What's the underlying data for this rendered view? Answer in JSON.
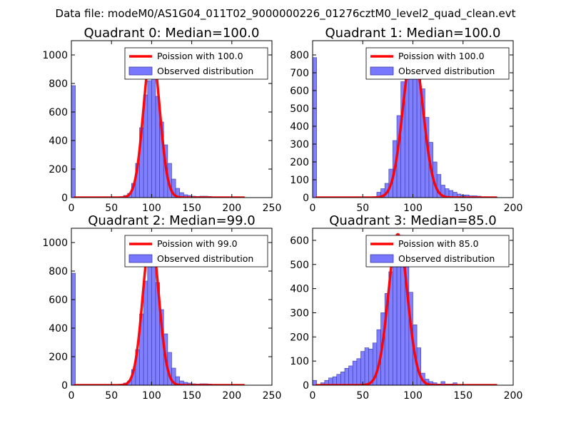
{
  "figure": {
    "suptitle": "Data file: modeM0/AS1G04_011T02_9000000226_01276cztM0_level2_quad_clean.evt"
  },
  "colors": {
    "histogram_fill": "#7878ff",
    "histogram_edge": "#3a3aa8",
    "poisson_line": "#ff0000",
    "frame": "#000000"
  },
  "chart_data": [
    {
      "type": "bar",
      "title": "Quadrant 0: Median=100.0",
      "xlim": [
        0,
        250
      ],
      "ylim": [
        0,
        1100
      ],
      "xticks": [
        0,
        50,
        100,
        150,
        200,
        250
      ],
      "yticks": [
        0,
        200,
        400,
        600,
        800,
        1000
      ],
      "bin_width": 5,
      "legend": {
        "position": "top-right",
        "line_label": "Poission with 100.0",
        "bar_label": "Observed distribution"
      },
      "bins": [
        0,
        60,
        65,
        70,
        75,
        80,
        85,
        90,
        95,
        100,
        105,
        110,
        115,
        120,
        125,
        130,
        135,
        140,
        145,
        150,
        155,
        160,
        165,
        170,
        175,
        180,
        185,
        190,
        195,
        200
      ],
      "values": [
        785,
        5,
        15,
        30,
        100,
        240,
        490,
        720,
        820,
        840,
        710,
        530,
        370,
        240,
        130,
        65,
        35,
        20,
        15,
        10,
        8,
        10,
        10,
        8,
        6,
        5,
        4,
        3,
        2,
        1
      ],
      "poisson": {
        "mean": 100,
        "peak": 1040,
        "sigma": 10,
        "x_start": 3,
        "x_end": 216
      }
    },
    {
      "type": "bar",
      "title": "Quadrant 1: Median=100.0",
      "xlim": [
        0,
        200
      ],
      "ylim": [
        0,
        880
      ],
      "xticks": [
        0,
        50,
        100,
        150,
        200
      ],
      "yticks": [
        0,
        100,
        200,
        300,
        400,
        500,
        600,
        700,
        800
      ],
      "bin_width": 4,
      "legend": {
        "position": "top-right",
        "line_label": "Poission with 100.0",
        "bar_label": "Observed distribution"
      },
      "bins": [
        0,
        64,
        68,
        72,
        76,
        80,
        84,
        88,
        92,
        96,
        100,
        104,
        108,
        112,
        116,
        120,
        124,
        128,
        132,
        136,
        140,
        144,
        148,
        152,
        156,
        160,
        164,
        168,
        172
      ],
      "values": [
        785,
        30,
        50,
        80,
        160,
        320,
        460,
        650,
        750,
        800,
        770,
        700,
        610,
        450,
        310,
        200,
        130,
        70,
        50,
        40,
        30,
        20,
        15,
        15,
        10,
        10,
        8,
        5,
        5
      ],
      "poisson": {
        "mean": 100,
        "peak": 830,
        "sigma": 10,
        "x_start": 3,
        "x_end": 184
      }
    },
    {
      "type": "bar",
      "title": "Quadrant 2: Median=99.0",
      "xlim": [
        0,
        250
      ],
      "ylim": [
        0,
        1100
      ],
      "xticks": [
        0,
        50,
        100,
        150,
        200,
        250
      ],
      "yticks": [
        0,
        200,
        400,
        600,
        800,
        1000
      ],
      "bin_width": 5,
      "legend": {
        "position": "top-right",
        "line_label": "Poission with 99.0",
        "bar_label": "Observed distribution"
      },
      "bins": [
        0,
        60,
        65,
        70,
        75,
        80,
        85,
        90,
        95,
        100,
        105,
        110,
        115,
        120,
        125,
        130,
        135,
        140,
        145,
        150,
        155,
        160,
        165,
        170,
        175,
        180,
        185,
        190,
        195,
        200
      ],
      "values": [
        785,
        5,
        15,
        30,
        110,
        250,
        500,
        730,
        830,
        850,
        720,
        530,
        360,
        230,
        120,
        60,
        30,
        20,
        15,
        10,
        8,
        10,
        10,
        8,
        6,
        5,
        4,
        3,
        2,
        1
      ],
      "poisson": {
        "mean": 99,
        "peak": 1040,
        "sigma": 10,
        "x_start": 3,
        "x_end": 216
      }
    },
    {
      "type": "bar",
      "title": "Quadrant 3: Median=85.0",
      "xlim": [
        0,
        200
      ],
      "ylim": [
        0,
        650
      ],
      "xticks": [
        0,
        50,
        100,
        150,
        200
      ],
      "yticks": [
        0,
        100,
        200,
        300,
        400,
        500,
        600
      ],
      "bin_width": 4,
      "legend": {
        "position": "top-right",
        "line_label": "Poission with 85.0",
        "bar_label": "Observed distribution"
      },
      "bins": [
        0,
        8,
        12,
        16,
        20,
        24,
        28,
        32,
        36,
        40,
        44,
        48,
        52,
        56,
        60,
        64,
        68,
        72,
        76,
        80,
        84,
        88,
        92,
        96,
        100,
        104,
        108,
        112,
        116,
        120,
        124,
        128,
        132,
        136,
        140
      ],
      "values": [
        20,
        10,
        20,
        30,
        35,
        45,
        55,
        70,
        80,
        100,
        110,
        140,
        155,
        150,
        175,
        230,
        300,
        380,
        470,
        550,
        615,
        620,
        560,
        385,
        250,
        155,
        50,
        25,
        15,
        10,
        5,
        15,
        5,
        5,
        10
      ],
      "poisson": {
        "mean": 85,
        "peak": 625,
        "sigma": 9.5,
        "x_start": 3,
        "x_end": 184
      }
    }
  ]
}
